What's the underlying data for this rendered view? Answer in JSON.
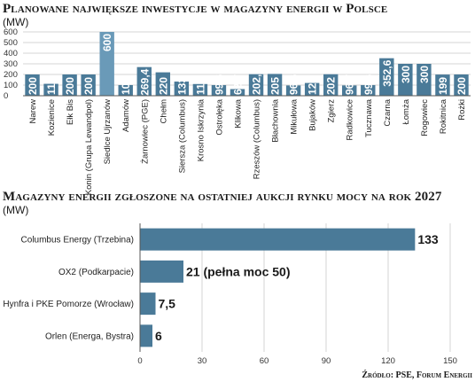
{
  "source": "Źródło: PSE, Forum Energii",
  "chart_data": [
    {
      "type": "bar",
      "title": "Planowane największe inwestycje w magazyny energii w Polsce",
      "unit": "(MW)",
      "ylim": [
        0,
        600
      ],
      "yticks": [
        "0",
        "100",
        "200",
        "300",
        "400",
        "500",
        "600"
      ],
      "grid": true,
      "bar_color": "#4a7a98",
      "highlight_color": "#6a9ab8",
      "categories": [
        "Narew",
        "Kozienice",
        "Ełk Bis",
        "Konin (Grupa Lewandpol)",
        "Siedlce Ujrzanów",
        "Adamów",
        "Żarnowiec (PGE)",
        "Chełm",
        "Siersza (Columbus)",
        "Krosno Iskrzynia",
        "Ostrołęka",
        "Klikowa",
        "Rzeszów (Columbus)",
        "Błachownia",
        "Mikułowa",
        "Bujaków",
        "Zgierz",
        "Radkowice",
        "Tucznawa",
        "Czarna",
        "Łomża",
        "Rogowiec",
        "Rokitnica",
        "Rożki"
      ],
      "values": [
        200,
        112,
        200,
        200,
        600,
        100,
        269.4,
        220,
        133,
        110,
        99.6,
        62.7,
        202.5,
        205,
        96.6,
        120,
        202,
        96.7,
        99.6,
        352.6,
        300,
        300,
        199,
        200
      ],
      "labels": [
        "200",
        "112",
        "200",
        "200",
        "600",
        "100",
        "269,4",
        "220",
        "133",
        "110",
        "99,6",
        "62,7",
        "202,5",
        "205",
        "96,6",
        "120",
        "202",
        "96,7",
        "99,6",
        "352,6",
        "300",
        "300",
        "199",
        "200"
      ]
    },
    {
      "type": "bar",
      "orientation": "horizontal",
      "title": "Magazyny energii zgłoszone na ostatniej aukcji rynku mocy na rok 2027",
      "unit": "(MW)",
      "xlim": [
        0,
        150
      ],
      "xticks": [
        "0",
        "30",
        "60",
        "90",
        "120",
        "150"
      ],
      "grid": true,
      "bar_color": "#4a7a98",
      "categories": [
        "Columbus Energy (Trzebina)",
        "OX2 (Podkarpacie)",
        "Hynfra i PKE Pomorze (Wrocław)",
        "Orlen (Energa, Bystra)"
      ],
      "values": [
        133,
        21,
        7.5,
        6
      ],
      "labels": [
        "133",
        "21 (pełna moc 50)",
        "7,5",
        "6"
      ]
    }
  ]
}
